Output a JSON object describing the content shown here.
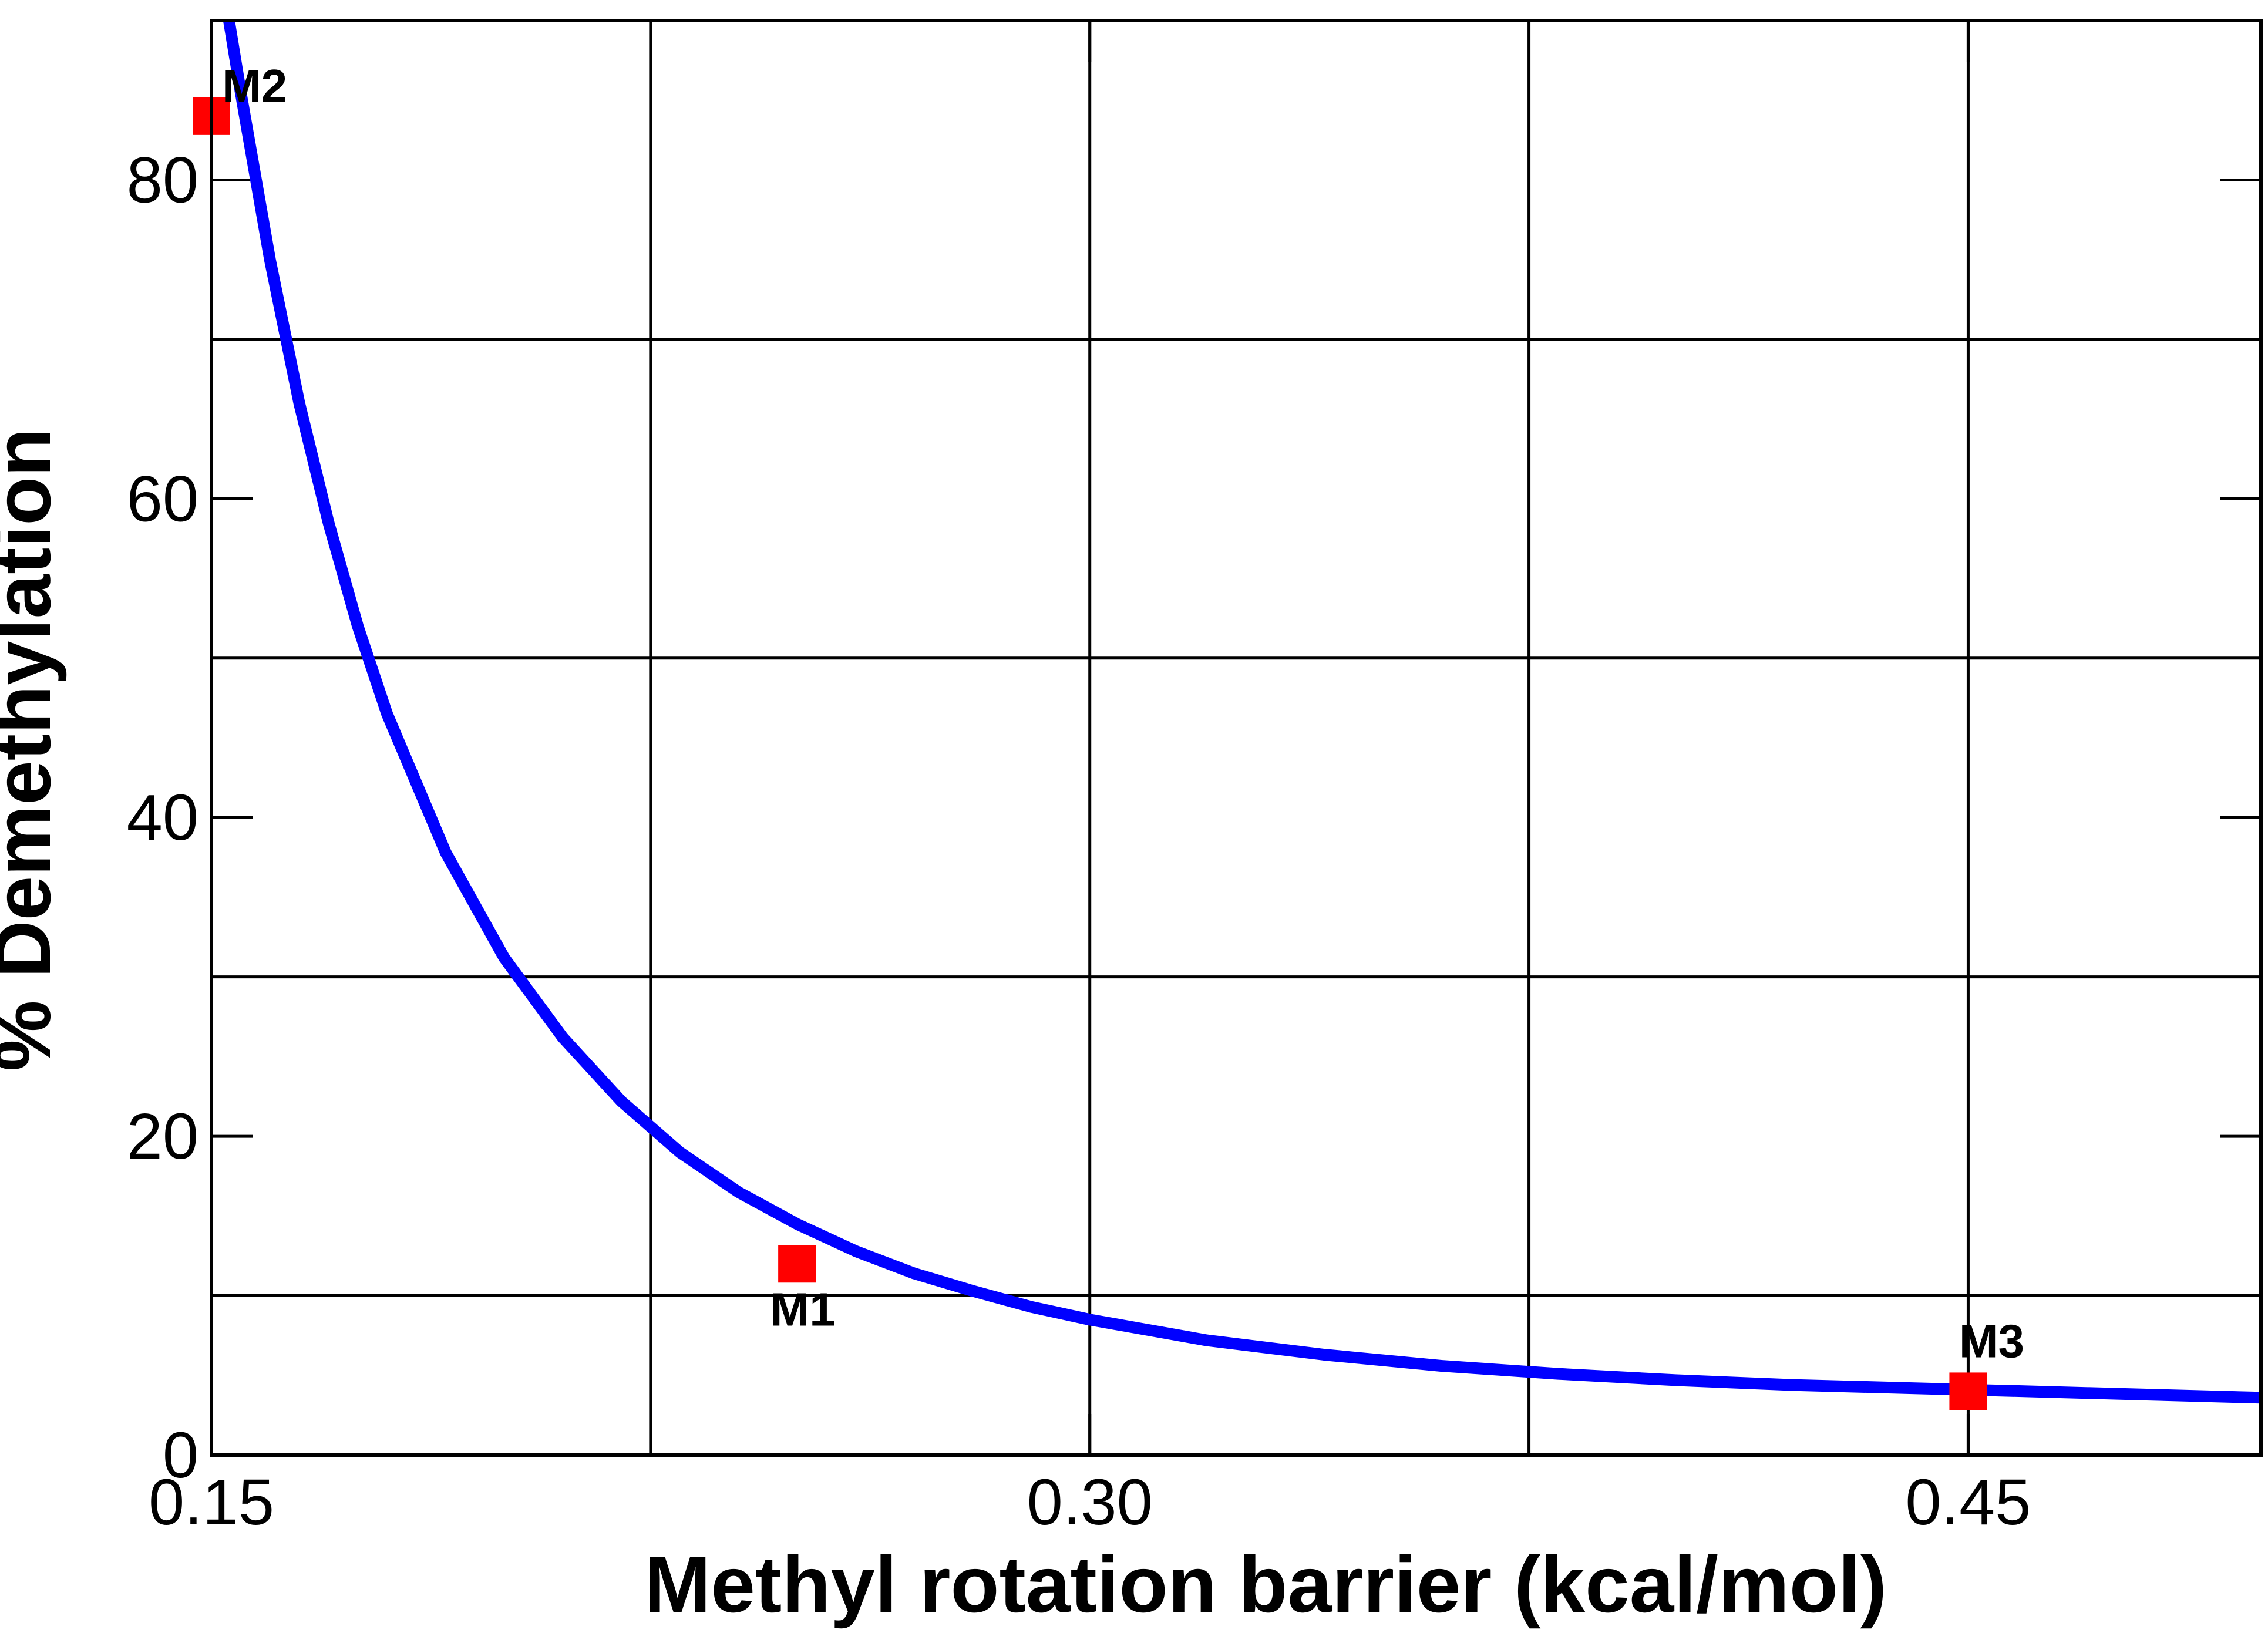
{
  "chart_data": {
    "type": "line",
    "xlabel": "Methyl rotation barrier (kcal/mol)",
    "ylabel": "% Demethylation",
    "xlim": [
      0.15,
      0.5
    ],
    "ylim": [
      0,
      90
    ],
    "x_major_ticks": [
      0.15,
      0.3,
      0.45
    ],
    "x_tick_labels": [
      "0.15",
      "0.30",
      "0.45"
    ],
    "x_grid_lines": [
      0.225,
      0.375
    ],
    "y_major_ticks": [
      0,
      20,
      40,
      60,
      80
    ],
    "y_tick_labels": [
      "0",
      "20",
      "40",
      "60",
      "80"
    ],
    "y_grid_lines": [
      10,
      30,
      50,
      70
    ],
    "grid": true,
    "series": [
      {
        "kind": "curve",
        "color": "#0000ff",
        "x": [
          0.153,
          0.155,
          0.16,
          0.165,
          0.17,
          0.175,
          0.18,
          0.19,
          0.2,
          0.21,
          0.22,
          0.23,
          0.24,
          0.25,
          0.26,
          0.27,
          0.28,
          0.29,
          0.3,
          0.32,
          0.34,
          0.36,
          0.38,
          0.4,
          0.42,
          0.44,
          0.46,
          0.48,
          0.5
        ],
        "y": [
          90,
          85.5,
          75,
          66,
          58.5,
          52,
          46.5,
          37.8,
          31.2,
          26.2,
          22.2,
          19,
          16.5,
          14.5,
          12.8,
          11.4,
          10.3,
          9.3,
          8.5,
          7.2,
          6.3,
          5.6,
          5.1,
          4.7,
          4.4,
          4.2,
          4.0,
          3.8,
          3.6
        ]
      },
      {
        "kind": "points",
        "color": "#ff0000",
        "marker": "square",
        "points": [
          {
            "label": "M2",
            "x": 0.15,
            "y": 84
          },
          {
            "label": "M1",
            "x": 0.25,
            "y": 12
          },
          {
            "label": "M3",
            "x": 0.45,
            "y": 4
          }
        ]
      }
    ]
  }
}
